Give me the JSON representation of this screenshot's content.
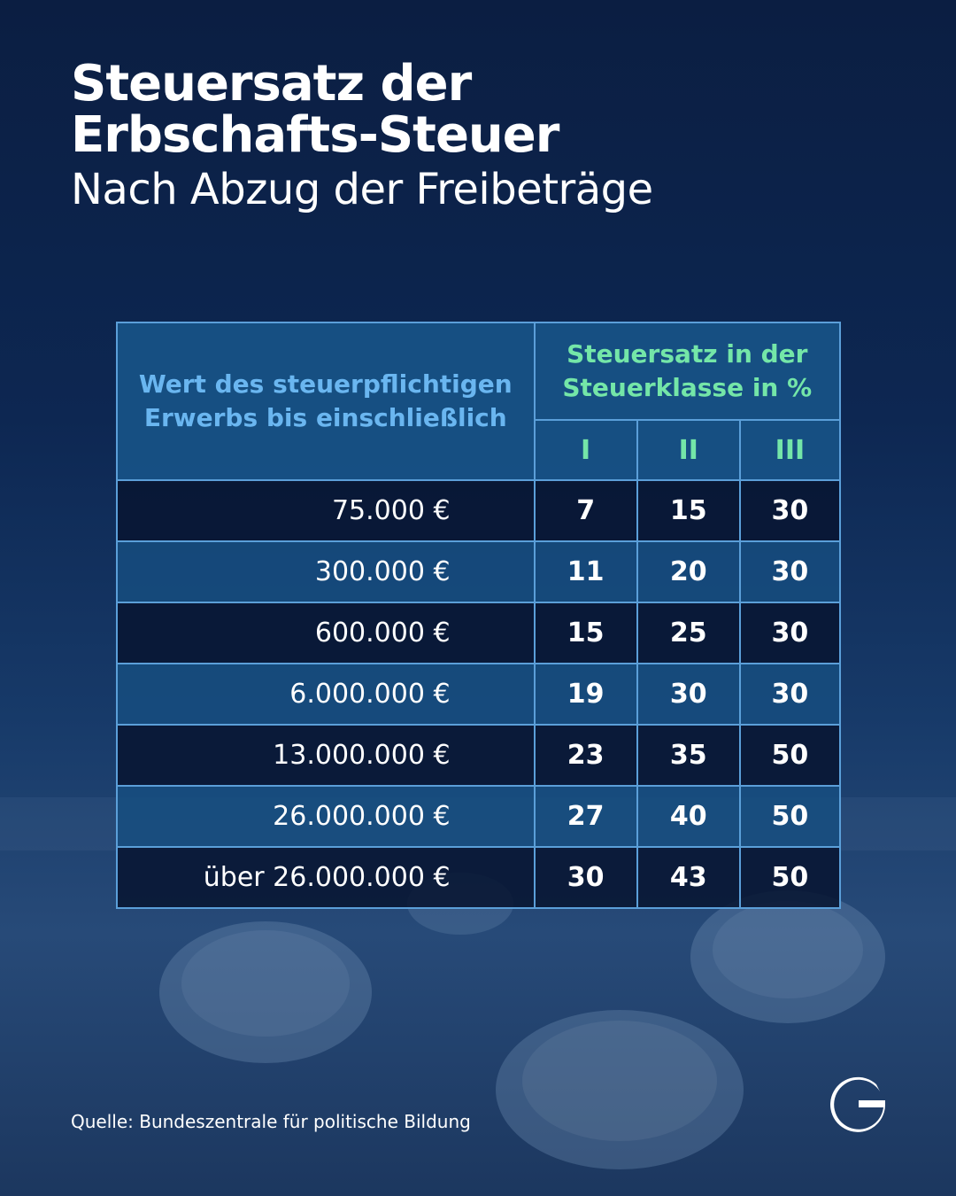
{
  "title_line1": "Steuersatz der",
  "title_line2": "Erbschafts-Steuer",
  "subtitle": "Nach Abzug der Freibeträge",
  "source": "Quelle: Bundeszentrale für politische Bildung",
  "logo_icon": "g-logo-icon",
  "colors": {
    "background": "#0d2752",
    "header_left_text": "#6ab6f0",
    "header_right_text": "#74e6a8",
    "grid": "#5b9fd9"
  },
  "chart_data": {
    "type": "table",
    "header_left_line1": "Wert des steuerpflichtigen",
    "header_left_line2": "Erwerbs bis einschließlich",
    "header_right_line1": "Steuersatz in der",
    "header_right_line2": "Steuerklasse in %",
    "classes": [
      "I",
      "II",
      "III"
    ],
    "rows": [
      {
        "amount": "75.000 €",
        "rates": [
          7,
          15,
          30
        ]
      },
      {
        "amount": "300.000 €",
        "rates": [
          11,
          20,
          30
        ]
      },
      {
        "amount": "600.000 €",
        "rates": [
          15,
          25,
          30
        ]
      },
      {
        "amount": "6.000.000 €",
        "rates": [
          19,
          30,
          30
        ]
      },
      {
        "amount": "13.000.000 €",
        "rates": [
          23,
          35,
          50
        ]
      },
      {
        "amount": "26.000.000 €",
        "rates": [
          27,
          40,
          50
        ]
      },
      {
        "amount": "über 26.000.000 €",
        "rates": [
          30,
          43,
          50
        ]
      }
    ]
  }
}
